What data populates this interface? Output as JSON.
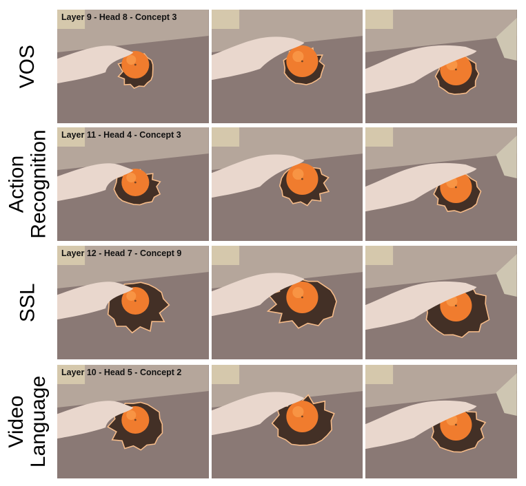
{
  "rows": [
    {
      "label_lines": [
        "VOS",
        ""
      ],
      "caption": "Layer 9 - Head 8 - Concept 3"
    },
    {
      "label_lines": [
        "Action",
        "Recognition"
      ],
      "caption": "Layer 11 - Head 4 - Concept 3"
    },
    {
      "label_lines": [
        "SSL",
        ""
      ],
      "caption": "Layer 12 - Head 7 - Concept 9"
    },
    {
      "label_lines": [
        "Video",
        "Language"
      ],
      "caption": "Layer 10 - Head 5 - Concept 2"
    }
  ],
  "colors": {
    "table": "#7a6762",
    "wall": "#ab9a8e",
    "hand": "#e6d2c6",
    "orange": "#ee6a12",
    "mask_shadow": "#2a1408",
    "mask_outline": "#f5b37a",
    "background": "#ffffff"
  }
}
